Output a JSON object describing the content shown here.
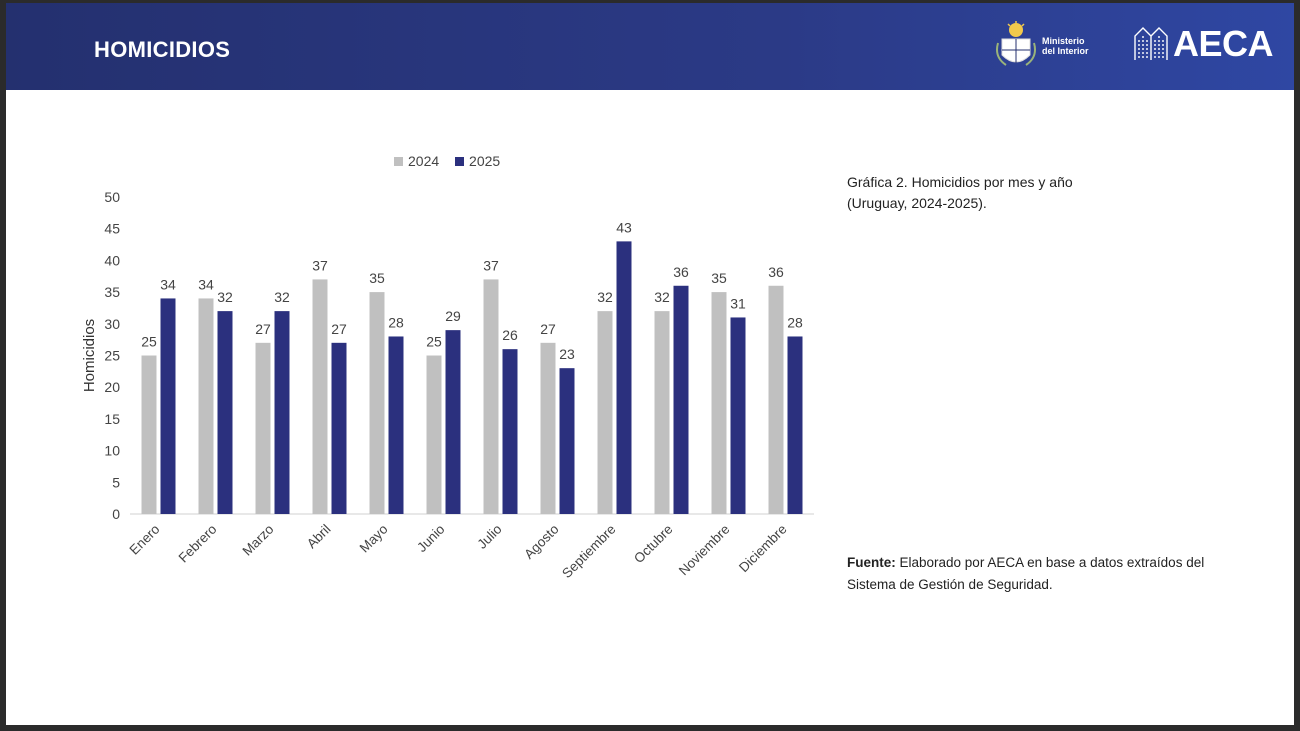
{
  "header": {
    "title": "HOMICIDIOS",
    "ministerio_line1": "Ministerio",
    "ministerio_line2": "del Interior",
    "aeca_logo_text": "AECA"
  },
  "caption": {
    "line1": "Gráfica 2. Homicidios por mes y año",
    "line2": "(Uruguay, 2024-2025)."
  },
  "source": {
    "label": "Fuente:",
    "text": " Elaborado por AECA en base a datos extraídos del",
    "line2": "Sistema de Gestión de Seguridad."
  },
  "colors": {
    "series_2024": "#c0c0c0",
    "series_2025": "#2b307e",
    "header_bg": "#24306f"
  },
  "chart_data": {
    "type": "bar",
    "title": "",
    "xlabel": "",
    "ylabel": "Homicidios",
    "ylim": [
      0,
      50
    ],
    "yticks": [
      0,
      5,
      10,
      15,
      20,
      25,
      30,
      35,
      40,
      45,
      50
    ],
    "grid": false,
    "legend": "top",
    "categories": [
      "Enero",
      "Febrero",
      "Marzo",
      "Abril",
      "Mayo",
      "Junio",
      "Julio",
      "Agosto",
      "Septiembre",
      "Octubre",
      "Noviembre",
      "Diciembre"
    ],
    "series": [
      {
        "name": "2024",
        "color": "#c0c0c0",
        "values": [
          25,
          34,
          27,
          37,
          35,
          25,
          37,
          27,
          32,
          32,
          35,
          36
        ]
      },
      {
        "name": "2025",
        "color": "#2b307e",
        "values": [
          34,
          32,
          32,
          27,
          28,
          29,
          26,
          23,
          43,
          36,
          31,
          28
        ]
      }
    ]
  }
}
